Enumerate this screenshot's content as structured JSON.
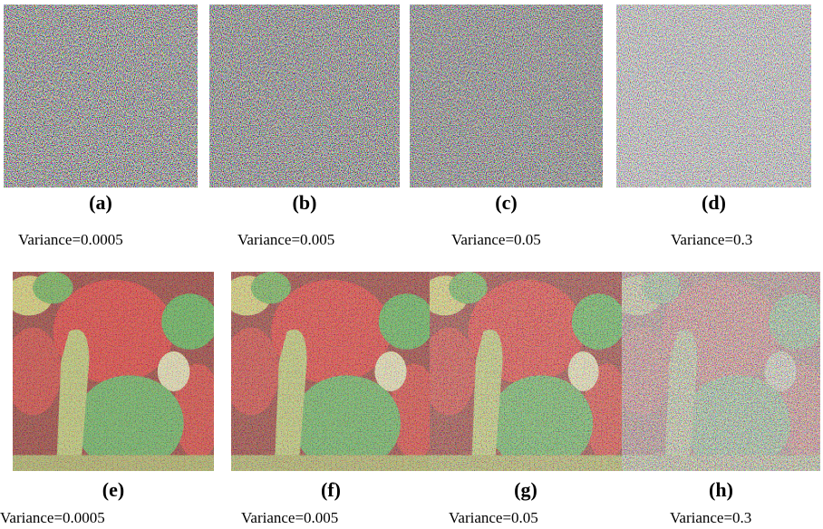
{
  "panels": [
    {
      "label": "(a)",
      "caption": "Variance=0.0005"
    },
    {
      "label": "(b)",
      "caption": "Variance=0.005"
    },
    {
      "label": "(c)",
      "caption": "Variance=0.05"
    },
    {
      "label": "(d)",
      "caption": "Variance=0.3"
    },
    {
      "label": "(e)",
      "caption": "Variance=0.0005"
    },
    {
      "label": "(f)",
      "caption": "Variance=0.005"
    },
    {
      "label": "(g)",
      "caption": "Variance=0.05"
    },
    {
      "label": "(h)",
      "caption": "Variance=0.3"
    }
  ]
}
